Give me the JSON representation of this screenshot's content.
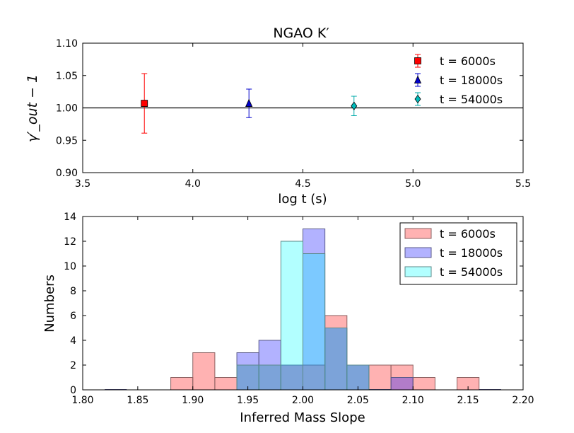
{
  "chart_data": [
    {
      "type": "scatter",
      "title": "NGAO K′",
      "xlabel": "log t (s)",
      "ylabel": "γ′_out − 1",
      "xlim": [
        3.5,
        5.5
      ],
      "ylim": [
        0.9,
        1.1
      ],
      "xticks": [
        "3.5",
        "4.0",
        "4.5",
        "5.0",
        "5.5"
      ],
      "yticks": [
        "0.90",
        "0.95",
        "1.00",
        "1.05",
        "1.10"
      ],
      "reference_line": 1.0,
      "legend_position": "top-right",
      "series": [
        {
          "name": "t = 6000s",
          "marker": "square",
          "color": "#ff0000",
          "errcolor": "#ff0000",
          "x": 3.78,
          "y": 1.007,
          "err_low": 0.046,
          "err_high": 0.046
        },
        {
          "name": "t = 18000s",
          "marker": "triangle",
          "color": "#0000cc",
          "errcolor": "#0000cc",
          "x": 4.255,
          "y": 1.007,
          "err_low": 0.022,
          "err_high": 0.022
        },
        {
          "name": "t = 54000s",
          "marker": "diamond",
          "color": "#00bbbb",
          "errcolor": "#00aaaa",
          "x": 4.732,
          "y": 1.003,
          "err_low": 0.015,
          "err_high": 0.015
        }
      ]
    },
    {
      "type": "bar",
      "subtype": "histogram",
      "xlabel": "Inferred Mass Slope",
      "ylabel": "Numbers",
      "xlim": [
        1.8,
        2.2
      ],
      "ylim": [
        0,
        14
      ],
      "xticks": [
        "1.80",
        "1.85",
        "1.90",
        "1.95",
        "2.00",
        "2.05",
        "2.10",
        "2.15",
        "2.20"
      ],
      "yticks": [
        "0",
        "2",
        "4",
        "6",
        "8",
        "10",
        "12",
        "14"
      ],
      "legend_position": "top-right",
      "bin_width": 0.02,
      "series": [
        {
          "name": "t = 6000s",
          "color": "#ff0000",
          "edge": "#8a6060",
          "alpha": 0.3,
          "bins": [
            {
              "x": 1.88,
              "count": 1
            },
            {
              "x": 1.9,
              "count": 3
            },
            {
              "x": 1.92,
              "count": 1
            },
            {
              "x": 1.94,
              "count": 2
            },
            {
              "x": 1.96,
              "count": 2
            },
            {
              "x": 1.98,
              "count": 2
            },
            {
              "x": 2.0,
              "count": 2
            },
            {
              "x": 2.02,
              "count": 6
            },
            {
              "x": 2.04,
              "count": 2
            },
            {
              "x": 2.06,
              "count": 2
            },
            {
              "x": 2.08,
              "count": 2
            },
            {
              "x": 2.1,
              "count": 1
            },
            {
              "x": 2.14,
              "count": 1
            }
          ]
        },
        {
          "name": "t = 18000s",
          "color": "#0000ff",
          "edge": "#5a5a8a",
          "alpha": 0.3,
          "bins": [
            {
              "x": 1.82,
              "count": 0
            },
            {
              "x": 1.94,
              "count": 3
            },
            {
              "x": 1.96,
              "count": 4
            },
            {
              "x": 1.98,
              "count": 2
            },
            {
              "x": 2.0,
              "count": 13
            },
            {
              "x": 2.02,
              "count": 5
            },
            {
              "x": 2.04,
              "count": 2
            },
            {
              "x": 2.06,
              "count": 0
            },
            {
              "x": 2.08,
              "count": 1
            },
            {
              "x": 2.16,
              "count": 0
            }
          ]
        },
        {
          "name": "t = 54000s",
          "color": "#00ffff",
          "edge": "#5a8a8a",
          "alpha": 0.3,
          "bins": [
            {
              "x": 1.94,
              "count": 2
            },
            {
              "x": 1.96,
              "count": 2
            },
            {
              "x": 1.98,
              "count": 12
            },
            {
              "x": 2.0,
              "count": 11
            },
            {
              "x": 2.02,
              "count": 5
            },
            {
              "x": 2.04,
              "count": 2
            }
          ]
        }
      ]
    }
  ]
}
